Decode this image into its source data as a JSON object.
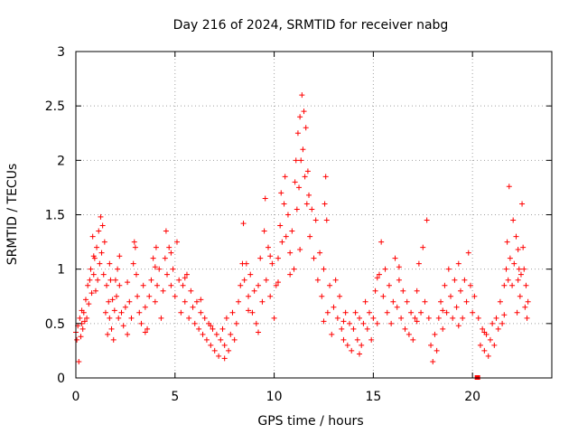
{
  "chart_data": {
    "type": "scatter",
    "title": "Day 216 of 2024, SRMTID for receiver nabg",
    "xlabel": "GPS time / hours",
    "ylabel": "SRMTID / TECUs",
    "xlim": [
      0,
      24
    ],
    "ylim": [
      0,
      3
    ],
    "xticks": [
      0,
      5,
      10,
      15,
      20
    ],
    "yticks": [
      0,
      0.5,
      1,
      1.5,
      2,
      2.5,
      3
    ],
    "xtick_labels": [
      "0",
      "5",
      "10",
      "15",
      "20"
    ],
    "ytick_labels": [
      "0",
      "0.5",
      "1",
      "1.5",
      "2",
      "2.5",
      "3"
    ],
    "grid": true,
    "marker": "+",
    "series": [
      {
        "name": "SRMTID",
        "color": "#ff0000",
        "points": [
          [
            0.0,
            0.42
          ],
          [
            0.05,
            0.35
          ],
          [
            0.1,
            0.48
          ],
          [
            0.15,
            0.15
          ],
          [
            0.2,
            0.55
          ],
          [
            0.25,
            0.38
          ],
          [
            0.3,
            0.5
          ],
          [
            0.35,
            0.45
          ],
          [
            0.4,
            0.6
          ],
          [
            0.45,
            0.52
          ],
          [
            0.5,
            0.72
          ],
          [
            0.55,
            0.55
          ],
          [
            0.6,
            0.85
          ],
          [
            0.65,
            0.68
          ],
          [
            0.7,
            0.9
          ],
          [
            0.75,
            1.0
          ],
          [
            0.8,
            0.78
          ],
          [
            0.85,
            1.3
          ],
          [
            0.9,
            0.95
          ],
          [
            0.95,
            1.1
          ],
          [
            1.0,
            0.8
          ],
          [
            1.05,
            1.2
          ],
          [
            1.1,
            0.9
          ],
          [
            1.15,
            1.35
          ],
          [
            1.2,
            1.05
          ],
          [
            1.25,
            1.48
          ],
          [
            1.3,
            1.15
          ],
          [
            1.35,
            1.4
          ],
          [
            1.4,
            0.95
          ],
          [
            1.45,
            1.25
          ],
          [
            1.5,
            0.6
          ],
          [
            1.55,
            0.85
          ],
          [
            1.6,
            0.4
          ],
          [
            1.65,
            0.7
          ],
          [
            1.7,
            0.55
          ],
          [
            1.75,
            0.9
          ],
          [
            1.8,
            0.45
          ],
          [
            1.85,
            0.72
          ],
          [
            1.9,
            0.35
          ],
          [
            1.95,
            0.62
          ],
          [
            2.0,
            0.9
          ],
          [
            2.05,
            0.75
          ],
          [
            2.1,
            1.0
          ],
          [
            2.15,
            0.55
          ],
          [
            2.2,
            0.85
          ],
          [
            2.3,
            0.6
          ],
          [
            2.4,
            0.48
          ],
          [
            2.5,
            0.65
          ],
          [
            2.6,
            0.4
          ],
          [
            2.7,
            0.7
          ],
          [
            2.8,
            0.55
          ],
          [
            2.9,
            1.05
          ],
          [
            2.95,
            1.25
          ],
          [
            3.0,
            1.2
          ],
          [
            3.05,
            0.95
          ],
          [
            3.1,
            0.75
          ],
          [
            3.2,
            0.6
          ],
          [
            3.3,
            0.5
          ],
          [
            3.4,
            0.85
          ],
          [
            3.5,
            0.65
          ],
          [
            3.6,
            0.45
          ],
          [
            3.7,
            0.75
          ],
          [
            3.8,
            0.9
          ],
          [
            3.9,
            1.1
          ],
          [
            4.0,
            0.7
          ],
          [
            4.05,
            1.2
          ],
          [
            4.1,
            0.85
          ],
          [
            4.2,
            1.0
          ],
          [
            4.3,
            0.55
          ],
          [
            4.4,
            0.8
          ],
          [
            4.5,
            1.1
          ],
          [
            4.55,
            1.35
          ],
          [
            4.6,
            0.95
          ],
          [
            4.7,
            1.2
          ],
          [
            4.8,
            0.85
          ],
          [
            4.9,
            1.0
          ],
          [
            5.0,
            0.75
          ],
          [
            5.1,
            1.25
          ],
          [
            5.2,
            0.9
          ],
          [
            5.3,
            0.6
          ],
          [
            5.4,
            0.85
          ],
          [
            5.5,
            0.7
          ],
          [
            5.6,
            0.95
          ],
          [
            5.7,
            0.55
          ],
          [
            5.8,
            0.8
          ],
          [
            5.9,
            0.65
          ],
          [
            6.0,
            0.5
          ],
          [
            6.1,
            0.7
          ],
          [
            6.2,
            0.45
          ],
          [
            6.3,
            0.6
          ],
          [
            6.4,
            0.4
          ],
          [
            6.5,
            0.55
          ],
          [
            6.6,
            0.35
          ],
          [
            6.7,
            0.5
          ],
          [
            6.8,
            0.3
          ],
          [
            6.9,
            0.45
          ],
          [
            7.0,
            0.25
          ],
          [
            7.1,
            0.4
          ],
          [
            7.2,
            0.2
          ],
          [
            7.3,
            0.35
          ],
          [
            7.4,
            0.45
          ],
          [
            7.5,
            0.3
          ],
          [
            7.6,
            0.55
          ],
          [
            7.7,
            0.25
          ],
          [
            7.8,
            0.4
          ],
          [
            7.9,
            0.6
          ],
          [
            8.0,
            0.35
          ],
          [
            8.1,
            0.5
          ],
          [
            8.2,
            0.7
          ],
          [
            8.3,
            0.85
          ],
          [
            8.4,
            1.05
          ],
          [
            8.45,
            1.42
          ],
          [
            8.5,
            0.9
          ],
          [
            8.6,
            1.05
          ],
          [
            8.7,
            0.75
          ],
          [
            8.8,
            0.95
          ],
          [
            8.9,
            0.6
          ],
          [
            9.0,
            0.8
          ],
          [
            9.1,
            0.5
          ],
          [
            9.2,
            0.85
          ],
          [
            9.3,
            1.1
          ],
          [
            9.4,
            0.7
          ],
          [
            9.5,
            1.35
          ],
          [
            9.55,
            1.65
          ],
          [
            9.6,
            0.9
          ],
          [
            9.7,
            1.2
          ],
          [
            9.8,
            0.75
          ],
          [
            9.9,
            1.05
          ],
          [
            10.0,
            0.55
          ],
          [
            10.1,
            0.85
          ],
          [
            10.2,
            1.1
          ],
          [
            10.3,
            1.4
          ],
          [
            10.35,
            1.7
          ],
          [
            10.4,
            1.25
          ],
          [
            10.5,
            1.6
          ],
          [
            10.55,
            1.85
          ],
          [
            10.6,
            1.3
          ],
          [
            10.7,
            1.5
          ],
          [
            10.8,
            1.15
          ],
          [
            10.9,
            1.35
          ],
          [
            11.0,
            1.0
          ],
          [
            11.05,
            1.8
          ],
          [
            11.1,
            2.0
          ],
          [
            11.15,
            1.55
          ],
          [
            11.2,
            2.25
          ],
          [
            11.25,
            1.75
          ],
          [
            11.3,
            2.4
          ],
          [
            11.35,
            2.0
          ],
          [
            11.4,
            2.6
          ],
          [
            11.45,
            2.1
          ],
          [
            11.5,
            2.45
          ],
          [
            11.55,
            1.85
          ],
          [
            11.6,
            2.3
          ],
          [
            11.65,
            1.6
          ],
          [
            11.7,
            1.9
          ],
          [
            11.8,
            1.3
          ],
          [
            11.9,
            1.55
          ],
          [
            12.0,
            1.1
          ],
          [
            12.1,
            1.45
          ],
          [
            12.2,
            0.9
          ],
          [
            12.3,
            1.15
          ],
          [
            12.4,
            0.75
          ],
          [
            12.5,
            1.0
          ],
          [
            12.55,
            1.6
          ],
          [
            12.6,
            1.85
          ],
          [
            12.65,
            1.45
          ],
          [
            12.7,
            0.6
          ],
          [
            12.8,
            0.85
          ],
          [
            12.9,
            0.4
          ],
          [
            13.0,
            0.65
          ],
          [
            13.1,
            0.9
          ],
          [
            13.2,
            0.55
          ],
          [
            13.3,
            0.75
          ],
          [
            13.4,
            0.45
          ],
          [
            13.5,
            0.35
          ],
          [
            13.6,
            0.6
          ],
          [
            13.7,
            0.3
          ],
          [
            13.8,
            0.5
          ],
          [
            13.9,
            0.25
          ],
          [
            14.0,
            0.45
          ],
          [
            14.1,
            0.6
          ],
          [
            14.2,
            0.35
          ],
          [
            14.3,
            0.55
          ],
          [
            14.4,
            0.3
          ],
          [
            14.5,
            0.5
          ],
          [
            14.6,
            0.7
          ],
          [
            14.7,
            0.45
          ],
          [
            14.8,
            0.6
          ],
          [
            14.9,
            0.35
          ],
          [
            15.0,
            0.55
          ],
          [
            15.1,
            0.8
          ],
          [
            15.2,
            0.5
          ],
          [
            15.3,
            0.95
          ],
          [
            15.4,
            1.25
          ],
          [
            15.5,
            0.75
          ],
          [
            15.6,
            1.0
          ],
          [
            15.7,
            0.6
          ],
          [
            15.8,
            0.85
          ],
          [
            15.9,
            0.5
          ],
          [
            16.0,
            0.7
          ],
          [
            16.1,
            1.1
          ],
          [
            16.2,
            0.65
          ],
          [
            16.3,
            0.9
          ],
          [
            16.4,
            0.55
          ],
          [
            16.5,
            0.8
          ],
          [
            16.6,
            0.45
          ],
          [
            16.7,
            0.7
          ],
          [
            16.8,
            0.4
          ],
          [
            16.9,
            0.6
          ],
          [
            17.0,
            0.35
          ],
          [
            17.1,
            0.55
          ],
          [
            17.2,
            0.8
          ],
          [
            17.3,
            1.05
          ],
          [
            17.4,
            0.6
          ],
          [
            17.5,
            1.2
          ],
          [
            17.6,
            0.7
          ],
          [
            17.7,
            1.45
          ],
          [
            17.8,
            0.55
          ],
          [
            17.9,
            0.3
          ],
          [
            18.0,
            0.15
          ],
          [
            18.1,
            0.4
          ],
          [
            18.2,
            0.25
          ],
          [
            18.3,
            0.55
          ],
          [
            18.4,
            0.7
          ],
          [
            18.5,
            0.45
          ],
          [
            18.6,
            0.85
          ],
          [
            18.7,
            0.6
          ],
          [
            18.8,
            1.0
          ],
          [
            18.9,
            0.75
          ],
          [
            19.0,
            0.55
          ],
          [
            19.1,
            0.9
          ],
          [
            19.2,
            0.65
          ],
          [
            19.3,
            1.05
          ],
          [
            19.4,
            0.8
          ],
          [
            19.5,
            0.55
          ],
          [
            19.6,
            0.9
          ],
          [
            19.7,
            0.7
          ],
          [
            19.8,
            1.15
          ],
          [
            19.9,
            0.85
          ],
          [
            20.0,
            0.6
          ],
          [
            20.1,
            0.75
          ],
          [
            20.3,
            0.55
          ],
          [
            20.4,
            0.3
          ],
          [
            20.5,
            0.45
          ],
          [
            20.6,
            0.25
          ],
          [
            20.7,
            0.4
          ],
          [
            20.8,
            0.2
          ],
          [
            20.9,
            0.35
          ],
          [
            21.0,
            0.5
          ],
          [
            21.1,
            0.3
          ],
          [
            21.2,
            0.55
          ],
          [
            21.3,
            0.45
          ],
          [
            21.4,
            0.7
          ],
          [
            21.5,
            0.5
          ],
          [
            21.6,
            0.85
          ],
          [
            21.7,
            1.0
          ],
          [
            21.75,
            1.25
          ],
          [
            21.8,
            0.9
          ],
          [
            21.85,
            1.76
          ],
          [
            21.9,
            1.1
          ],
          [
            22.0,
            0.85
          ],
          [
            22.05,
            1.45
          ],
          [
            22.1,
            1.05
          ],
          [
            22.2,
            1.3
          ],
          [
            22.25,
            0.6
          ],
          [
            22.3,
            0.9
          ],
          [
            22.35,
            1.0
          ],
          [
            22.4,
            0.75
          ],
          [
            22.45,
            0.95
          ],
          [
            22.5,
            1.6
          ],
          [
            22.55,
            1.2
          ],
          [
            22.6,
            1.0
          ],
          [
            22.65,
            0.65
          ],
          [
            22.7,
            0.85
          ],
          [
            22.75,
            0.55
          ],
          [
            22.8,
            0.7
          ],
          [
            0.3,
            0.62
          ],
          [
            0.9,
            1.12
          ],
          [
            1.7,
            1.05
          ],
          [
            2.6,
            0.88
          ],
          [
            3.5,
            0.42
          ],
          [
            4.8,
            1.15
          ],
          [
            5.5,
            0.92
          ],
          [
            6.3,
            0.72
          ],
          [
            7.5,
            0.18
          ],
          [
            8.7,
            0.62
          ],
          [
            9.8,
            1.12
          ],
          [
            10.8,
            0.95
          ],
          [
            11.75,
            1.68
          ],
          [
            12.5,
            0.52
          ],
          [
            13.5,
            0.52
          ],
          [
            14.3,
            0.22
          ],
          [
            15.2,
            0.92
          ],
          [
            16.3,
            1.02
          ],
          [
            17.2,
            0.52
          ],
          [
            18.5,
            0.62
          ],
          [
            19.3,
            0.48
          ],
          [
            20.6,
            0.42
          ],
          [
            21.6,
            0.58
          ],
          [
            22.3,
            1.18
          ],
          [
            11.3,
            1.18
          ],
          [
            10.2,
            0.88
          ],
          [
            9.2,
            0.42
          ],
          [
            4.0,
            1.02
          ],
          [
            2.2,
            1.12
          ],
          [
            6.8,
            0.48
          ]
        ]
      }
    ],
    "outliers": [
      [
        20.25,
        0.0
      ]
    ]
  }
}
